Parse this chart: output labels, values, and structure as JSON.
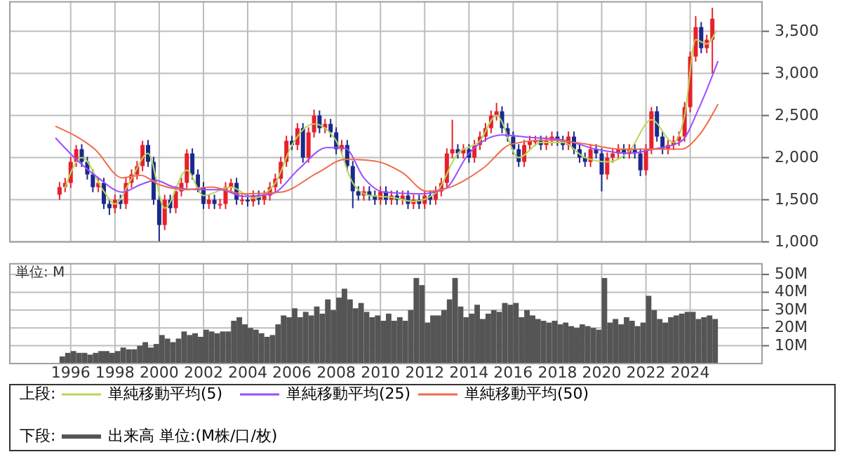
{
  "chart_data": [
    {
      "type": "candlestick",
      "x": [
        "1995-07",
        "1995-10",
        "1996-01",
        "1996-04",
        "1996-07",
        "1996-10",
        "1997-01",
        "1997-04",
        "1997-07",
        "1997-10",
        "1998-01",
        "1998-04",
        "1998-07",
        "1998-10",
        "1999-01",
        "1999-04",
        "1999-07",
        "1999-10",
        "2000-01",
        "2000-04",
        "2000-07",
        "2000-10",
        "2001-01",
        "2001-04",
        "2001-07",
        "2001-10",
        "2002-01",
        "2002-04",
        "2002-07",
        "2002-10",
        "2003-01",
        "2003-04",
        "2003-07",
        "2003-10",
        "2004-01",
        "2004-04",
        "2004-07",
        "2004-10",
        "2005-01",
        "2005-04",
        "2005-07",
        "2005-10",
        "2006-01",
        "2006-04",
        "2006-07",
        "2006-10",
        "2007-01",
        "2007-04",
        "2007-07",
        "2007-10",
        "2008-01",
        "2008-04",
        "2008-07",
        "2008-10",
        "2009-01",
        "2009-04",
        "2009-07",
        "2009-10",
        "2010-01",
        "2010-04",
        "2010-07",
        "2010-10",
        "2011-01",
        "2011-04",
        "2011-07",
        "2011-10",
        "2012-01",
        "2012-04",
        "2012-07",
        "2012-10",
        "2013-01",
        "2013-04",
        "2013-07",
        "2013-10",
        "2014-01",
        "2014-04",
        "2014-07",
        "2014-10",
        "2015-01",
        "2015-04",
        "2015-07",
        "2015-10",
        "2016-01",
        "2016-04",
        "2016-07",
        "2016-10",
        "2017-01",
        "2017-04",
        "2017-07",
        "2017-10",
        "2018-01",
        "2018-04",
        "2018-07",
        "2018-10",
        "2019-01",
        "2019-04",
        "2019-07",
        "2019-10",
        "2020-01",
        "2020-04",
        "2020-07",
        "2020-10",
        "2021-01",
        "2021-04",
        "2021-07",
        "2021-10",
        "2022-01",
        "2022-04",
        "2022-07",
        "2022-10",
        "2023-01",
        "2023-04",
        "2023-07",
        "2023-10",
        "2024-01",
        "2024-04",
        "2024-07",
        "2024-10",
        "2025-01"
      ],
      "ohlc": [
        [
          1560,
          1710,
          1500,
          1650
        ],
        [
          1650,
          1760,
          1590,
          1700
        ],
        [
          1700,
          2010,
          1640,
          1950
        ],
        [
          1950,
          2150,
          1890,
          2100
        ],
        [
          2100,
          2160,
          1890,
          1950
        ],
        [
          1950,
          2010,
          1740,
          1800
        ],
        [
          1800,
          1860,
          1590,
          1650
        ],
        [
          1650,
          1760,
          1590,
          1700
        ],
        [
          1700,
          1760,
          1390,
          1450
        ],
        [
          1450,
          1510,
          1320,
          1400
        ],
        [
          1400,
          1560,
          1340,
          1500
        ],
        [
          1500,
          1560,
          1390,
          1450
        ],
        [
          1450,
          1760,
          1390,
          1700
        ],
        [
          1700,
          1860,
          1640,
          1800
        ],
        [
          1800,
          1960,
          1740,
          1900
        ],
        [
          1900,
          2200,
          1840,
          2150
        ],
        [
          2150,
          2210,
          1890,
          1950
        ],
        [
          1950,
          2010,
          1440,
          1500
        ],
        [
          1500,
          1560,
          1000,
          1200
        ],
        [
          1200,
          1560,
          1140,
          1500
        ],
        [
          1500,
          1560,
          1340,
          1400
        ],
        [
          1400,
          1660,
          1340,
          1600
        ],
        [
          1600,
          1760,
          1540,
          1700
        ],
        [
          1700,
          2100,
          1640,
          2050
        ],
        [
          2050,
          2110,
          1740,
          1800
        ],
        [
          1800,
          1860,
          1590,
          1650
        ],
        [
          1650,
          1710,
          1390,
          1450
        ],
        [
          1450,
          1560,
          1390,
          1500
        ],
        [
          1500,
          1560,
          1390,
          1450
        ],
        [
          1450,
          1510,
          1390,
          1450
        ],
        [
          1450,
          1710,
          1390,
          1650
        ],
        [
          1650,
          1750,
          1590,
          1700
        ],
        [
          1700,
          1760,
          1440,
          1500
        ],
        [
          1500,
          1560,
          1440,
          1500
        ],
        [
          1500,
          1560,
          1420,
          1480
        ],
        [
          1480,
          1610,
          1420,
          1550
        ],
        [
          1550,
          1610,
          1440,
          1500
        ],
        [
          1500,
          1610,
          1440,
          1550
        ],
        [
          1550,
          1710,
          1490,
          1650
        ],
        [
          1650,
          1810,
          1590,
          1750
        ],
        [
          1750,
          2010,
          1690,
          1950
        ],
        [
          1950,
          2260,
          1890,
          2200
        ],
        [
          2200,
          2260,
          2090,
          2150
        ],
        [
          2150,
          2410,
          2090,
          2350
        ],
        [
          2350,
          2410,
          1940,
          2000
        ],
        [
          2000,
          2360,
          1940,
          2300
        ],
        [
          2300,
          2570,
          2240,
          2500
        ],
        [
          2500,
          2560,
          2290,
          2350
        ],
        [
          2350,
          2460,
          2290,
          2400
        ],
        [
          2400,
          2460,
          2240,
          2300
        ],
        [
          2300,
          2360,
          2040,
          2100
        ],
        [
          2100,
          2210,
          2040,
          2150
        ],
        [
          2150,
          2210,
          1840,
          1900
        ],
        [
          1900,
          1960,
          1400,
          1600
        ],
        [
          1600,
          1660,
          1490,
          1550
        ],
        [
          1550,
          1660,
          1490,
          1600
        ],
        [
          1600,
          1660,
          1490,
          1550
        ],
        [
          1550,
          1610,
          1440,
          1500
        ],
        [
          1500,
          1660,
          1440,
          1600
        ],
        [
          1600,
          1660,
          1440,
          1500
        ],
        [
          1500,
          1610,
          1440,
          1550
        ],
        [
          1550,
          1610,
          1440,
          1500
        ],
        [
          1500,
          1610,
          1440,
          1550
        ],
        [
          1550,
          1610,
          1390,
          1450
        ],
        [
          1450,
          1560,
          1390,
          1500
        ],
        [
          1500,
          1560,
          1390,
          1450
        ],
        [
          1450,
          1610,
          1390,
          1550
        ],
        [
          1550,
          1610,
          1440,
          1500
        ],
        [
          1500,
          1660,
          1440,
          1600
        ],
        [
          1600,
          1760,
          1540,
          1700
        ],
        [
          1700,
          2110,
          1640,
          2050
        ],
        [
          2050,
          2450,
          1990,
          2100
        ],
        [
          2100,
          2160,
          1990,
          2050
        ],
        [
          2050,
          2160,
          1990,
          2100
        ],
        [
          2100,
          2160,
          1940,
          2000
        ],
        [
          2000,
          2210,
          1940,
          2150
        ],
        [
          2150,
          2310,
          2090,
          2250
        ],
        [
          2250,
          2410,
          2190,
          2350
        ],
        [
          2350,
          2560,
          2290,
          2500
        ],
        [
          2500,
          2650,
          2440,
          2550
        ],
        [
          2550,
          2610,
          2290,
          2350
        ],
        [
          2350,
          2410,
          2190,
          2250
        ],
        [
          2250,
          2310,
          2040,
          2100
        ],
        [
          2100,
          2160,
          1890,
          1950
        ],
        [
          1950,
          2210,
          1890,
          2150
        ],
        [
          2150,
          2260,
          2090,
          2200
        ],
        [
          2200,
          2260,
          2140,
          2200
        ],
        [
          2200,
          2260,
          2090,
          2150
        ],
        [
          2150,
          2260,
          2090,
          2200
        ],
        [
          2200,
          2310,
          2140,
          2250
        ],
        [
          2250,
          2310,
          2140,
          2200
        ],
        [
          2200,
          2260,
          2090,
          2150
        ],
        [
          2150,
          2310,
          2090,
          2250
        ],
        [
          2250,
          2310,
          2040,
          2100
        ],
        [
          2100,
          2160,
          1940,
          2000
        ],
        [
          2000,
          2060,
          1890,
          1950
        ],
        [
          1950,
          2160,
          1890,
          2100
        ],
        [
          2100,
          2160,
          1990,
          2050
        ],
        [
          2050,
          2110,
          1600,
          1800
        ],
        [
          1800,
          2060,
          1740,
          2000
        ],
        [
          2000,
          2110,
          1940,
          2050
        ],
        [
          2050,
          2160,
          1990,
          2100
        ],
        [
          2100,
          2160,
          1990,
          2050
        ],
        [
          2050,
          2160,
          1990,
          2100
        ],
        [
          2100,
          2160,
          1990,
          2050
        ],
        [
          2050,
          2110,
          1780,
          1850
        ],
        [
          1850,
          2160,
          1790,
          2100
        ],
        [
          2100,
          2600,
          2040,
          2550
        ],
        [
          2550,
          2610,
          2190,
          2250
        ],
        [
          2250,
          2310,
          2040,
          2100
        ],
        [
          2100,
          2210,
          2040,
          2150
        ],
        [
          2150,
          2260,
          2090,
          2200
        ],
        [
          2200,
          2310,
          2140,
          2250
        ],
        [
          2250,
          2660,
          2190,
          2600
        ],
        [
          2600,
          3260,
          2540,
          3200
        ],
        [
          3200,
          3680,
          3140,
          3550
        ],
        [
          3550,
          3610,
          3240,
          3300
        ],
        [
          3300,
          3460,
          3240,
          3400
        ],
        [
          3400,
          3780,
          3000,
          3650
        ]
      ],
      "colors": [
        "#e8202a",
        "#e8202a",
        "#e8202a",
        "#e8202a",
        "#1a2a8c",
        "#1a2a8c",
        "#1a2a8c",
        "#e8202a",
        "#1a2a8c",
        "#1a2a8c",
        "#e8202a",
        "#1a2a8c",
        "#e8202a",
        "#e8202a",
        "#e8202a",
        "#e8202a",
        "#1a2a8c",
        "#1a2a8c",
        "#1a2a8c",
        "#e8202a",
        "#1a2a8c",
        "#e8202a",
        "#e8202a",
        "#e8202a",
        "#1a2a8c",
        "#1a2a8c",
        "#1a2a8c",
        "#e8202a",
        "#1a2a8c",
        "#e8202a",
        "#e8202a",
        "#e8202a",
        "#1a2a8c",
        "#e8202a",
        "#1a2a8c",
        "#e8202a",
        "#1a2a8c",
        "#e8202a",
        "#e8202a",
        "#e8202a",
        "#e8202a",
        "#e8202a",
        "#1a2a8c",
        "#e8202a",
        "#1a2a8c",
        "#e8202a",
        "#e8202a",
        "#1a2a8c",
        "#e8202a",
        "#1a2a8c",
        "#1a2a8c",
        "#e8202a",
        "#1a2a8c",
        "#1a2a8c",
        "#1a2a8c",
        "#e8202a",
        "#1a2a8c",
        "#1a2a8c",
        "#e8202a",
        "#1a2a8c",
        "#e8202a",
        "#1a2a8c",
        "#e8202a",
        "#1a2a8c",
        "#e8202a",
        "#1a2a8c",
        "#e8202a",
        "#1a2a8c",
        "#e8202a",
        "#e8202a",
        "#e8202a",
        "#e8202a",
        "#1a2a8c",
        "#e8202a",
        "#1a2a8c",
        "#e8202a",
        "#e8202a",
        "#e8202a",
        "#e8202a",
        "#e8202a",
        "#1a2a8c",
        "#1a2a8c",
        "#1a2a8c",
        "#1a2a8c",
        "#e8202a",
        "#e8202a",
        "#e8202a",
        "#1a2a8c",
        "#e8202a",
        "#e8202a",
        "#1a2a8c",
        "#1a2a8c",
        "#e8202a",
        "#1a2a8c",
        "#1a2a8c",
        "#1a2a8c",
        "#e8202a",
        "#1a2a8c",
        "#1a2a8c",
        "#e8202a",
        "#e8202a",
        "#e8202a",
        "#1a2a8c",
        "#e8202a",
        "#1a2a8c",
        "#1a2a8c",
        "#e8202a",
        "#e8202a",
        "#1a2a8c",
        "#1a2a8c",
        "#e8202a",
        "#e8202a",
        "#e8202a",
        "#e8202a",
        "#e8202a",
        "#e8202a",
        "#1a2a8c",
        "#e8202a",
        "#e8202a"
      ],
      "series": [
        {
          "type": "line",
          "name": "単純移動平均(5)",
          "color": "#b3d957",
          "x": [
            "1995-10",
            "1996-07",
            "1997-07",
            "1998-01",
            "1998-10",
            "1999-07",
            "2000-04",
            "2001-04",
            "2002-01",
            "2003-04",
            "2004-04",
            "2005-04",
            "2006-01",
            "2007-01",
            "2008-01",
            "2008-10",
            "2009-07",
            "2010-07",
            "2011-07",
            "2012-07",
            "2013-07",
            "2014-07",
            "2015-04",
            "2016-04",
            "2017-04",
            "2018-04",
            "2019-04",
            "2020-04",
            "2021-04",
            "2022-04",
            "2023-04",
            "2023-10",
            "2024-04",
            "2024-10",
            "2025-03"
          ],
          "values": [
            1650,
            2000,
            1600,
            1450,
            1750,
            2050,
            1400,
            1850,
            1550,
            1650,
            1520,
            1700,
            2150,
            2400,
            2200,
            1700,
            1550,
            1530,
            1480,
            1580,
            2050,
            2200,
            2500,
            2000,
            2180,
            2180,
            2000,
            1950,
            2080,
            2450,
            2180,
            2500,
            3400,
            3350,
            3500
          ]
        },
        {
          "type": "line",
          "name": "単純移動平均(25)",
          "color": "#9b4dff",
          "x": [
            "1995-05",
            "1996-04",
            "1997-04",
            "1998-05",
            "1999-03",
            "1999-11",
            "2000-09",
            "2001-10",
            "2002-10",
            "2003-11",
            "2005-02",
            "2006-05",
            "2007-08",
            "2008-06",
            "2009-04",
            "2010-03",
            "2011-11",
            "2012-12",
            "2014-01",
            "2015-07",
            "2016-10",
            "2018-04",
            "2019-10",
            "2021-04",
            "2022-05",
            "2023-08",
            "2024-06",
            "2025-04"
          ],
          "values": [
            2230,
            1980,
            1760,
            1590,
            1680,
            1730,
            1650,
            1620,
            1620,
            1540,
            1570,
            1870,
            2120,
            2110,
            1760,
            1590,
            1570,
            1630,
            2050,
            2270,
            2240,
            2210,
            2100,
            2050,
            2100,
            2190,
            2600,
            3140
          ]
        },
        {
          "type": "line",
          "name": "単純移動平均(50)",
          "color": "#f26b4b",
          "x": [
            "1995-05",
            "1997-02",
            "1998-05",
            "1999-03",
            "2000-01",
            "2001-04",
            "2002-05",
            "2003-11",
            "2005-07",
            "2007-03",
            "2008-06",
            "2009-10",
            "2011-01",
            "2012-02",
            "2013-03",
            "2014-09",
            "2015-12",
            "2017-08",
            "2019-05",
            "2020-11",
            "2022-05",
            "2023-08",
            "2024-06",
            "2025-04"
          ],
          "values": [
            2370,
            2100,
            1760,
            1790,
            1680,
            1620,
            1650,
            1570,
            1590,
            1820,
            1980,
            1960,
            1820,
            1600,
            1650,
            1880,
            2160,
            2210,
            2160,
            2100,
            2100,
            2100,
            2270,
            2630
          ]
        }
      ],
      "xlim": [
        "1993-04",
        "2027-04"
      ],
      "xticks": [
        "1996",
        "1998",
        "2000",
        "2002",
        "2004",
        "2006",
        "2008",
        "2010",
        "2012",
        "2014",
        "2016",
        "2018",
        "2020",
        "2022",
        "2024"
      ],
      "ylim": [
        1000,
        3850
      ],
      "yticks": [
        {
          "value": 1000,
          "label": "1,000"
        },
        {
          "value": 1500,
          "label": "1,500"
        },
        {
          "value": 2000,
          "label": "2,000"
        },
        {
          "value": 2500,
          "label": "2,500"
        },
        {
          "value": 3000,
          "label": "3,000"
        },
        {
          "value": 3500,
          "label": "3,500"
        }
      ],
      "tick_labels": "y",
      "grid": true,
      "legend": "bottom",
      "legend_title": "上段:"
    },
    {
      "type": "bar",
      "x": [
        "1995-07",
        "1995-10",
        "1996-01",
        "1996-04",
        "1996-07",
        "1996-10",
        "1997-01",
        "1997-04",
        "1997-07",
        "1997-10",
        "1998-01",
        "1998-04",
        "1998-07",
        "1998-10",
        "1999-01",
        "1999-04",
        "1999-07",
        "1999-10",
        "2000-01",
        "2000-04",
        "2000-07",
        "2000-10",
        "2001-01",
        "2001-04",
        "2001-07",
        "2001-10",
        "2002-01",
        "2002-04",
        "2002-07",
        "2002-10",
        "2003-01",
        "2003-04",
        "2003-07",
        "2003-10",
        "2004-01",
        "2004-04",
        "2004-07",
        "2004-10",
        "2005-01",
        "2005-04",
        "2005-07",
        "2005-10",
        "2006-01",
        "2006-04",
        "2006-07",
        "2006-10",
        "2007-01",
        "2007-04",
        "2007-07",
        "2007-10",
        "2008-01",
        "2008-04",
        "2008-07",
        "2008-10",
        "2009-01",
        "2009-04",
        "2009-07",
        "2009-10",
        "2010-01",
        "2010-04",
        "2010-07",
        "2010-10",
        "2011-01",
        "2011-04",
        "2011-07",
        "2011-10",
        "2012-01",
        "2012-04",
        "2012-07",
        "2012-10",
        "2013-01",
        "2013-04",
        "2013-07",
        "2013-10",
        "2014-01",
        "2014-04",
        "2014-07",
        "2014-10",
        "2015-01",
        "2015-04",
        "2015-07",
        "2015-10",
        "2016-01",
        "2016-04",
        "2016-07",
        "2016-10",
        "2017-01",
        "2017-04",
        "2017-07",
        "2017-10",
        "2018-01",
        "2018-04",
        "2018-07",
        "2018-10",
        "2019-01",
        "2019-04",
        "2019-07",
        "2019-10",
        "2020-01",
        "2020-04",
        "2020-07",
        "2020-10",
        "2021-01",
        "2021-04",
        "2021-07",
        "2021-10",
        "2022-01",
        "2022-04",
        "2022-07",
        "2022-10",
        "2023-01",
        "2023-04",
        "2023-07",
        "2023-10",
        "2024-01",
        "2024-04",
        "2024-07",
        "2024-10",
        "2025-01"
      ],
      "series": [
        {
          "name": "出来高 単位:(M株/口/枚)",
          "color": "#555555",
          "values": [
            4,
            6,
            7,
            6,
            6,
            5,
            6,
            7,
            7,
            6,
            7,
            9,
            8,
            8,
            10,
            12,
            9,
            11,
            16,
            14,
            12,
            14,
            18,
            16,
            17,
            15,
            19,
            18,
            17,
            18,
            18,
            24,
            26,
            22,
            20,
            19,
            17,
            15,
            16,
            22,
            27,
            26,
            31,
            26,
            29,
            27,
            32,
            28,
            36,
            30,
            37,
            42,
            36,
            31,
            34,
            29,
            26,
            27,
            24,
            28,
            24,
            26,
            24,
            30,
            48,
            44,
            23,
            27,
            27,
            30,
            36,
            48,
            32,
            26,
            28,
            33,
            25,
            28,
            30,
            29,
            34,
            33,
            34,
            26,
            30,
            27,
            25,
            24,
            23,
            24,
            22,
            23,
            21,
            20,
            22,
            21,
            20,
            19,
            48,
            23,
            25,
            22,
            26,
            24,
            21,
            23,
            38,
            30,
            25,
            23,
            26,
            27,
            28,
            29,
            29,
            25,
            26,
            27,
            25
          ]
        }
      ],
      "xlim": [
        "1993-04",
        "2027-04"
      ],
      "xticks": [
        "1996",
        "1998",
        "2000",
        "2002",
        "2004",
        "2006",
        "2008",
        "2010",
        "2012",
        "2014",
        "2016",
        "2018",
        "2020",
        "2022",
        "2024"
      ],
      "ylim": [
        0,
        56
      ],
      "yticks": [
        {
          "value": 10,
          "label": "10M"
        },
        {
          "value": 20,
          "label": "20M"
        },
        {
          "value": 30,
          "label": "30M"
        },
        {
          "value": 40,
          "label": "40M"
        },
        {
          "value": 50,
          "label": "50M"
        }
      ],
      "grid": true,
      "legend": "bottom",
      "legend_title": "下段:",
      "annotations": [
        "単位: M"
      ]
    }
  ]
}
